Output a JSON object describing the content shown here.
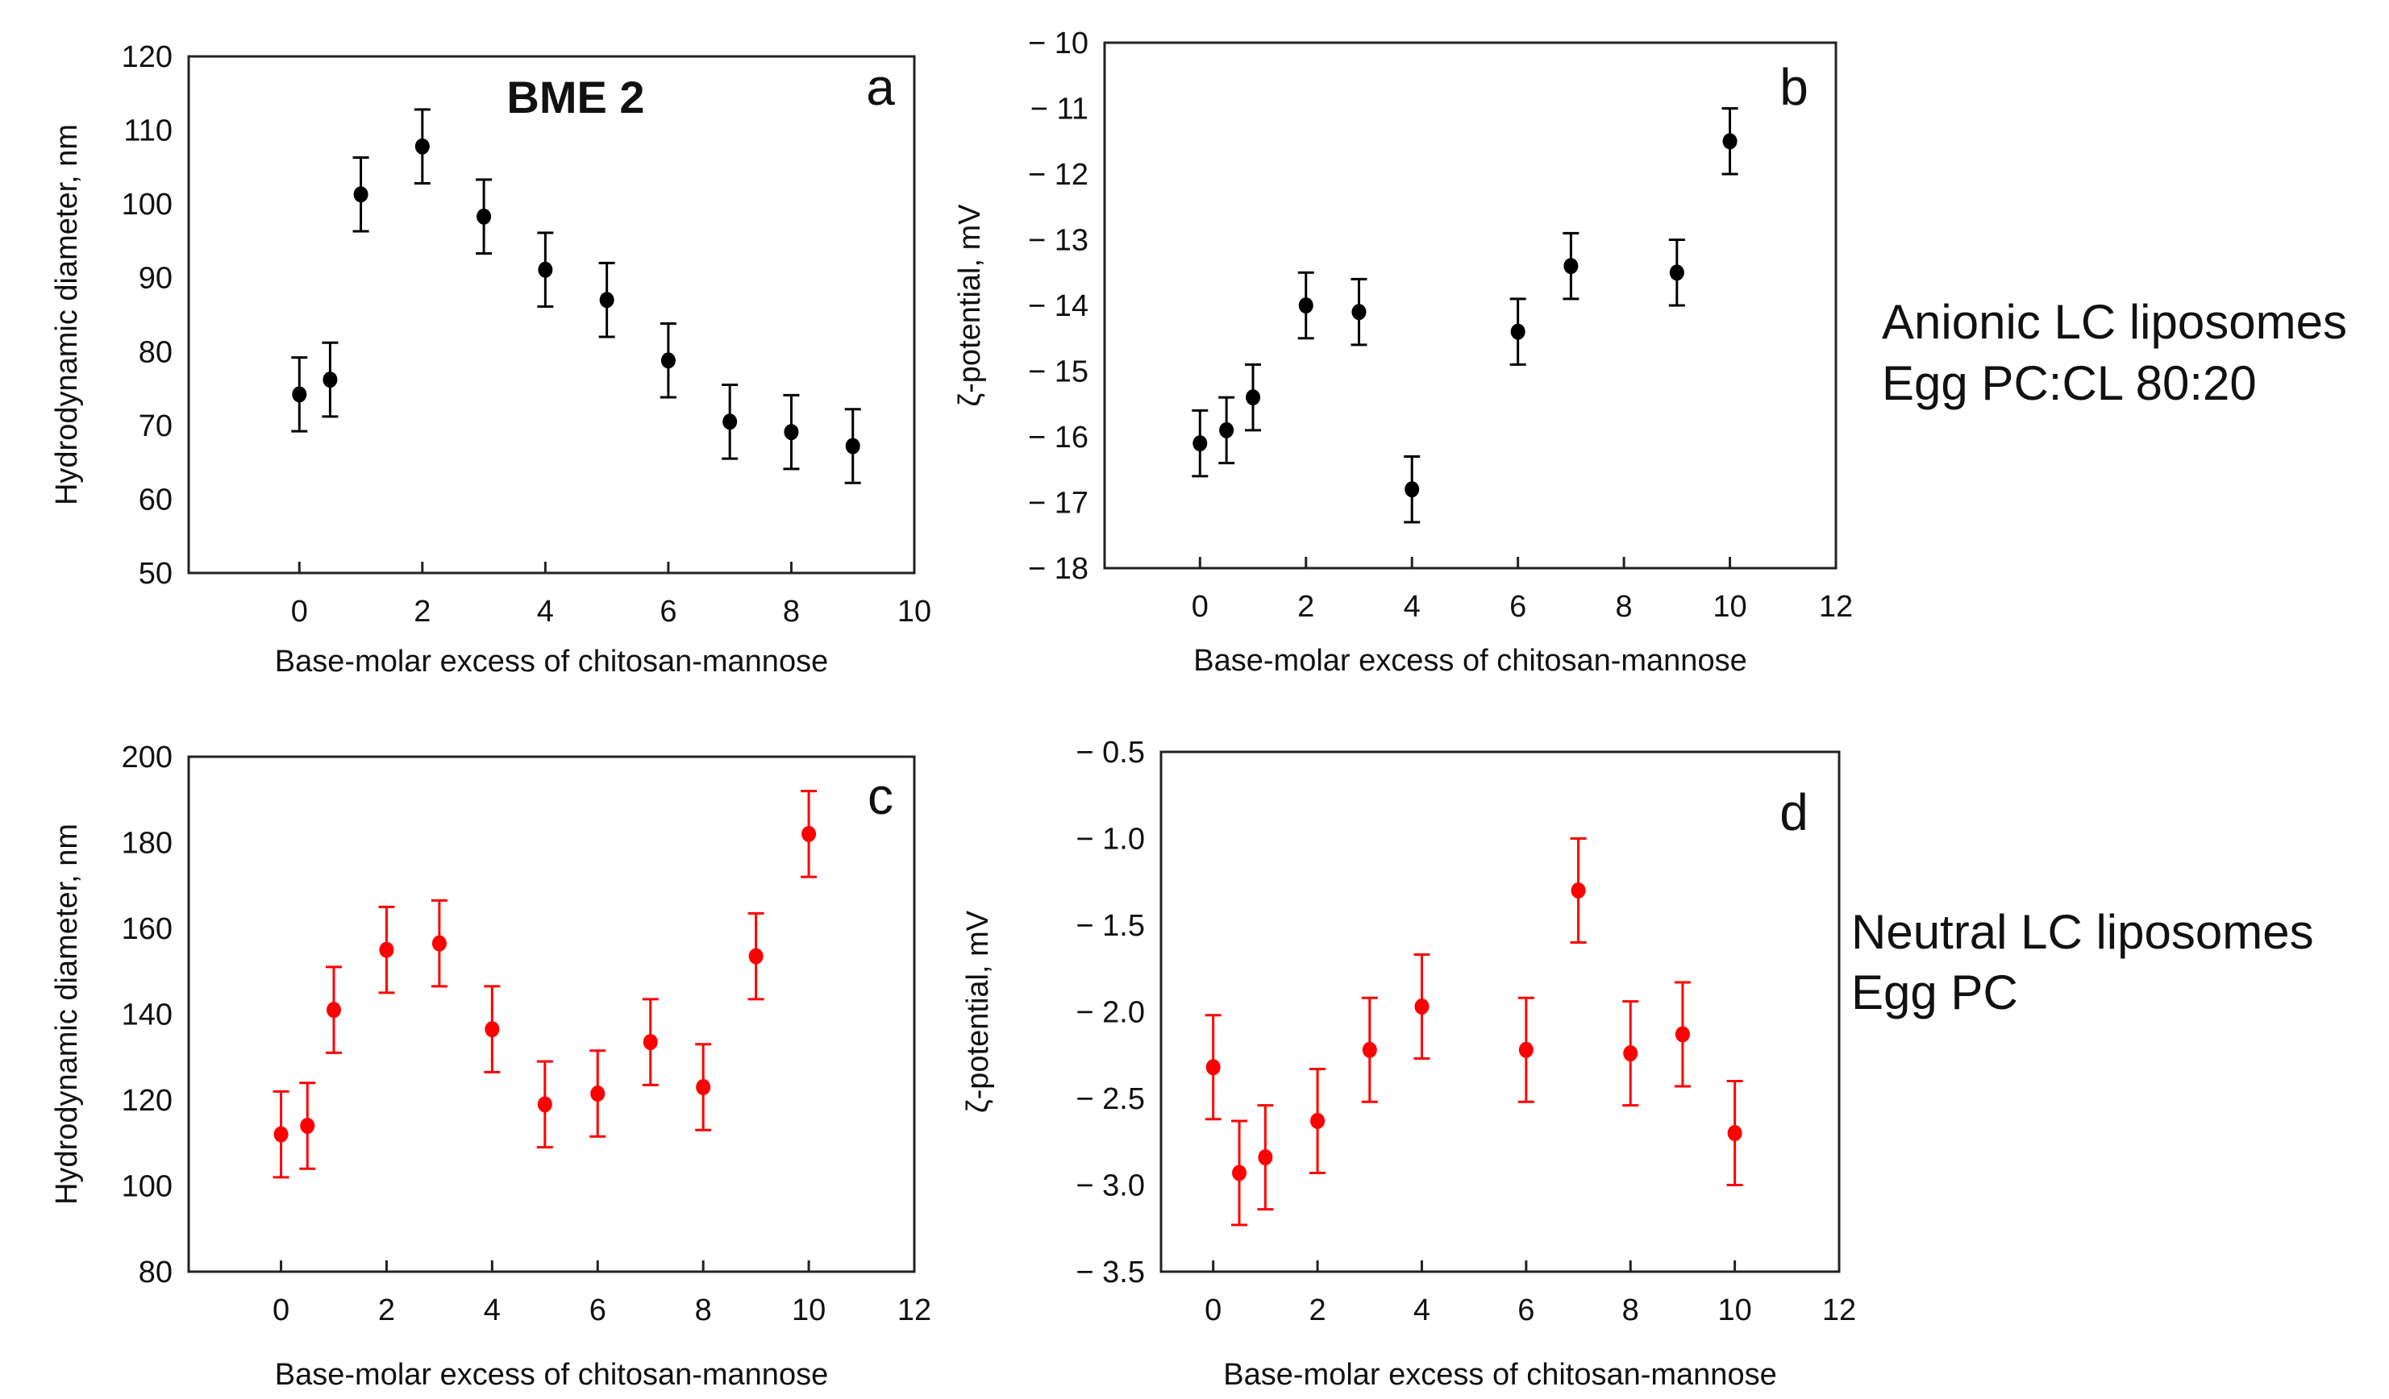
{
  "chart_data": [
    {
      "id": "a",
      "type": "scatter",
      "panel_label": "a",
      "title": "BME 2",
      "xlabel": "Base-molar excess of chitosan-mannose",
      "ylabel": "Hydrodynamic  diameter, nm",
      "xlim": [
        -1.8,
        10
      ],
      "ylim": [
        50,
        120
      ],
      "xticks": [
        0,
        2,
        4,
        6,
        8,
        10
      ],
      "yticks": [
        50,
        60,
        70,
        80,
        90,
        100,
        110,
        120
      ],
      "ytick_labels": [
        "50",
        "60",
        "70",
        "80",
        "90",
        "100",
        "110",
        "120"
      ],
      "color": "#000000",
      "x": [
        0,
        0.5,
        1,
        2,
        3,
        4,
        5,
        6,
        7,
        8,
        9
      ],
      "y": [
        74.2,
        76.2,
        101.3,
        107.8,
        98.3,
        91.1,
        87.0,
        78.8,
        70.5,
        69.1,
        67.2
      ],
      "err": [
        5,
        5,
        5,
        5,
        5,
        5,
        5,
        5,
        5,
        5,
        5
      ]
    },
    {
      "id": "b",
      "type": "scatter",
      "panel_label": "b",
      "xlabel": "Base-molar excess of chitosan-mannose",
      "ylabel": "ζ-potential, mV",
      "xlim": [
        -1.8,
        12
      ],
      "ylim": [
        -18,
        -10
      ],
      "xticks": [
        0,
        2,
        4,
        6,
        8,
        10,
        12
      ],
      "yticks": [
        -18,
        -17,
        -16,
        -15,
        -14,
        -13,
        -12,
        -11,
        -10
      ],
      "ytick_labels": [
        "− 18",
        "− 17",
        "− 16",
        "− 15",
        "− 14",
        "− 13",
        "− 12",
        "− 11",
        "− 10"
      ],
      "color": "#000000",
      "x": [
        0,
        0.5,
        1,
        2,
        3,
        4,
        6,
        7,
        9,
        10
      ],
      "y": [
        -16.1,
        -15.9,
        -15.4,
        -14.0,
        -14.1,
        -16.8,
        -14.4,
        -13.4,
        -13.5,
        -11.5
      ],
      "err": [
        0.5,
        0.5,
        0.5,
        0.5,
        0.5,
        0.5,
        0.5,
        0.5,
        0.5,
        0.5
      ]
    },
    {
      "id": "c",
      "type": "scatter",
      "panel_label": "c",
      "xlabel": "Base-molar excess of chitosan-mannose",
      "ylabel": "Hydrodynamic  diameter, nm",
      "xlim": [
        -1.75,
        12
      ],
      "ylim": [
        80,
        200
      ],
      "xticks": [
        0,
        2,
        4,
        6,
        8,
        10,
        12
      ],
      "yticks": [
        80,
        100,
        120,
        140,
        160,
        180,
        200
      ],
      "ytick_labels": [
        "80",
        "100",
        "120",
        "140",
        "160",
        "180",
        "200"
      ],
      "color": "#ff0000",
      "x": [
        0,
        0.5,
        1,
        2,
        3,
        4,
        5,
        6,
        7,
        8,
        9,
        10
      ],
      "y": [
        112,
        114,
        141,
        155,
        156.5,
        136.5,
        119,
        121.5,
        133.5,
        123,
        153.5,
        182
      ],
      "err": [
        10,
        10,
        10,
        10,
        10,
        10,
        10,
        10,
        10,
        10,
        10,
        10
      ]
    },
    {
      "id": "d",
      "type": "scatter",
      "panel_label": "d",
      "xlabel": "Base-molar excess of chitosan-mannose",
      "ylabel": "ζ-potential, mV",
      "xlim": [
        -1,
        12
      ],
      "ylim": [
        -3.5,
        -0.5
      ],
      "xticks": [
        0,
        2,
        4,
        6,
        8,
        10,
        12
      ],
      "yticks": [
        -3.5,
        -3.0,
        -2.5,
        -2.0,
        -1.5,
        -1.0,
        -0.5
      ],
      "ytick_labels": [
        "− 3.5",
        "− 3.0",
        "− 2.5",
        "− 2.0",
        "− 1.5",
        "− 1.0",
        "− 0.5"
      ],
      "color": "#ff0000",
      "x": [
        0,
        0.5,
        1,
        2,
        3,
        4,
        6,
        7,
        8,
        9,
        10
      ],
      "y": [
        -2.32,
        -2.93,
        -2.84,
        -2.63,
        -2.22,
        -1.97,
        -2.22,
        -1.3,
        -2.24,
        -2.13,
        -2.7
      ],
      "err": [
        0.3,
        0.3,
        0.3,
        0.3,
        0.3,
        0.3,
        0.3,
        0.3,
        0.3,
        0.3,
        0.3
      ]
    }
  ],
  "annotations": {
    "anionic_line1": "Anionic LC liposomes",
    "anionic_line2": "Egg PC:CL 80:20",
    "neutral_line1": "Neutral LC liposomes",
    "neutral_line2": "Egg PC"
  }
}
